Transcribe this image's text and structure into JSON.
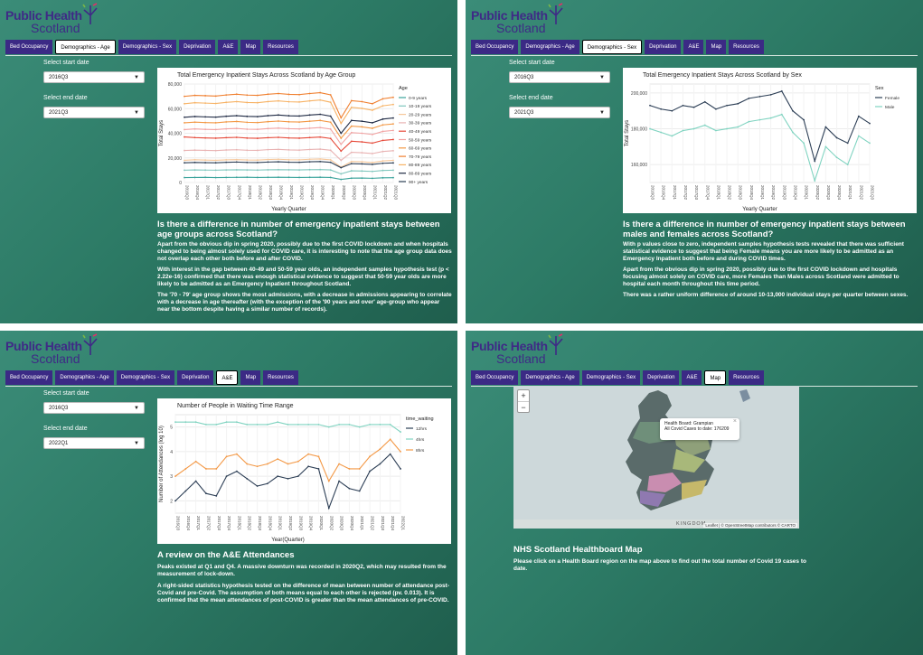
{
  "app": {
    "logo_line1": "Public Health",
    "logo_line2": "Scotland"
  },
  "tabs": [
    "Bed Occupancy",
    "Demographics - Age",
    "Demographics - Sex",
    "Deprivation",
    "A&E",
    "Map",
    "Resources"
  ],
  "labels": {
    "start": "Select start date",
    "end": "Select end date"
  },
  "colors": {
    "panel_bg": "#2d7b66",
    "tab_bg": "#3b2a85",
    "logo": "#3f2a86"
  },
  "age": {
    "start_value": "2016Q3",
    "end_value": "2021Q3",
    "heading": "Is there a difference in number of emergency inpatient stays between age groups across Scotland?",
    "p1": "Apart from the obvious dip in spring 2020, possibly due to the first COVID lockdown and when hospitals changed to being almost solely used for COVID care, it is interesting to note that the age group data does not overlap each other both before and after COVID.",
    "p2": "With interest in the gap between 40-49 and 50-59 year olds, an independent samples hypothesis test (p < 2.22e-16) confirmed that there was enough statistical evidence to suggest that 50-59 year olds are more likely to be admitted as an Emergency Inpatient throughout Scotland.",
    "p3": "The '70 - 79' age group shows the most admissions, with a decrease in admissions appearing to correlate with a decrease in age thereafter (with the exception of the '90 years and over' age-group who appear near the bottom despite having a similar number of records).",
    "chart_data": {
      "type": "line",
      "title": "Total Emergency Inpatient Stays Across Scotland by Age Group",
      "xlabel": "Yearly Quarter",
      "ylabel": "Total Stays",
      "legend_title": "Age",
      "legend": "right",
      "ylim": [
        0,
        80000
      ],
      "x": [
        "2016Q3",
        "2016Q4",
        "2017Q1",
        "2017Q2",
        "2017Q3",
        "2017Q4",
        "2018Q1",
        "2018Q2",
        "2018Q3",
        "2018Q4",
        "2019Q1",
        "2019Q2",
        "2019Q3",
        "2019Q4",
        "2020Q1",
        "2020Q2",
        "2020Q3",
        "2020Q4",
        "2021Q1",
        "2021Q2",
        "2021Q3"
      ],
      "yticks": [
        "0",
        "20,000",
        "40,000",
        "60,000",
        "80,000"
      ],
      "series": [
        {
          "name": "0-9 years",
          "color": "#3aa39b",
          "values": [
            4000,
            4100,
            4200,
            4000,
            4100,
            4200,
            4300,
            4100,
            4200,
            4300,
            4200,
            4100,
            4200,
            4300,
            4100,
            2500,
            3500,
            3600,
            3400,
            3800,
            3900
          ]
        },
        {
          "name": "10-19 years",
          "color": "#7fc6bd",
          "values": [
            10000,
            10200,
            10100,
            10000,
            10200,
            10300,
            10200,
            10100,
            10300,
            10400,
            10300,
            10200,
            10400,
            10500,
            10200,
            7000,
            9500,
            9300,
            9000,
            9800,
            10000
          ]
        },
        {
          "name": "20-29 years",
          "color": "#f6c79a",
          "values": [
            18000,
            18500,
            18200,
            18000,
            18400,
            18600,
            18300,
            18200,
            18700,
            18900,
            18500,
            18400,
            18900,
            19100,
            18400,
            12500,
            17000,
            16800,
            16200,
            17500,
            18000
          ]
        },
        {
          "name": "30-39 years",
          "color": "#e9b3b3",
          "values": [
            26000,
            26300,
            26100,
            25900,
            26400,
            26600,
            26200,
            26100,
            26700,
            26900,
            26500,
            26300,
            26800,
            27100,
            26200,
            18000,
            24500,
            24200,
            23500,
            25200,
            25800
          ]
        },
        {
          "name": "40-49 years",
          "color": "#e64a3a",
          "values": [
            37000,
            36500,
            36200,
            36000,
            36400,
            36700,
            36100,
            35900,
            36400,
            36700,
            36200,
            36000,
            36500,
            36900,
            35800,
            25500,
            33500,
            33000,
            32000,
            34200,
            34900
          ]
        },
        {
          "name": "50-59 years",
          "color": "#f2a3a3",
          "values": [
            43000,
            43500,
            43200,
            43000,
            43600,
            43900,
            43300,
            43200,
            43800,
            44200,
            43700,
            43500,
            44100,
            44600,
            43400,
            31000,
            40500,
            40000,
            39000,
            41500,
            42300
          ]
        },
        {
          "name": "60-69 years",
          "color": "#f39845",
          "values": [
            48500,
            49000,
            48700,
            48500,
            49200,
            49600,
            48900,
            48700,
            49400,
            49900,
            49300,
            49100,
            49800,
            50400,
            49000,
            36000,
            45800,
            45200,
            44000,
            46800,
            47600
          ]
        },
        {
          "name": "70-79 years",
          "color": "#f07f2f",
          "values": [
            70000,
            70800,
            70500,
            70200,
            71100,
            71700,
            71000,
            70800,
            71700,
            72300,
            71600,
            71400,
            72300,
            73000,
            71200,
            52500,
            66500,
            65700,
            64000,
            68000,
            69200
          ]
        },
        {
          "name": "80-89 years",
          "color": "#f7b366",
          "values": [
            64000,
            64800,
            64500,
            64200,
            65100,
            65700,
            65000,
            64800,
            65700,
            66300,
            65600,
            65400,
            66300,
            67000,
            65200,
            48000,
            61000,
            60200,
            58700,
            62300,
            63400
          ]
        },
        {
          "name": "80-89 years",
          "color": "#1f2a44",
          "values": [
            53000,
            53600,
            53300,
            53100,
            53800,
            54300,
            53700,
            53500,
            54300,
            54800,
            54200,
            54000,
            54800,
            55400,
            53900,
            40000,
            50400,
            49800,
            48500,
            51500,
            52400
          ]
        },
        {
          "name": "90+ years",
          "color": "#2c3e55",
          "values": [
            16000,
            16300,
            16100,
            16000,
            16400,
            16600,
            16300,
            16200,
            16600,
            16800,
            16500,
            16400,
            16800,
            17000,
            16400,
            12000,
            15300,
            15100,
            14700,
            15600,
            15900
          ]
        }
      ]
    }
  },
  "sex": {
    "start_value": "2016Q3",
    "end_value": "2021Q3",
    "heading": "Is there a difference in number of emergency inpatient stays between males and females across Scotland?",
    "p1": "With p values close to zero, independent samples hypothesis tests revealed that there was sufficient statistical evidence to suggest that being Female means you are more likely to be admitted as an Emergency Inpatient both before and during COVID times.",
    "p2": "Apart from the obvious dip in spring 2020, possibly due to the first COVID lockdown and hospitals focusing almost solely on COVID care, more Females than Males across Scotland were admitted to hospital each month throughout this time period.",
    "p3": "There was a rather uniform difference of around 10-13,000 individual stays per quarter between sexes.",
    "chart_data": {
      "type": "line",
      "title": "Total Emergency Inpatient Stays Across Scotland by Sex",
      "xlabel": "Yearly Quarter",
      "ylabel": "Total Stays",
      "legend_title": "Sex",
      "legend": "right",
      "ylim": [
        150000,
        205000
      ],
      "x": [
        "2016Q3",
        "2016Q4",
        "2017Q1",
        "2017Q2",
        "2017Q3",
        "2017Q4",
        "2018Q1",
        "2018Q2",
        "2018Q3",
        "2018Q4",
        "2019Q1",
        "2019Q2",
        "2019Q3",
        "2019Q4",
        "2020Q1",
        "2020Q2",
        "2020Q3",
        "2020Q4",
        "2021Q1",
        "2021Q2",
        "2021Q3"
      ],
      "yticks": [
        "160,000",
        "180,000",
        "200,000"
      ],
      "series": [
        {
          "name": "Female",
          "color": "#2c3e55",
          "values": [
            193000,
            191000,
            190000,
            193000,
            192000,
            195000,
            191000,
            193000,
            194000,
            197000,
            198000,
            199000,
            201000,
            190000,
            185000,
            162000,
            181000,
            175000,
            172000,
            187000,
            183000
          ]
        },
        {
          "name": "Male",
          "color": "#7fd3c0",
          "values": [
            180000,
            178000,
            176000,
            179000,
            180000,
            182000,
            179000,
            180000,
            181000,
            184000,
            185000,
            186000,
            188000,
            178000,
            172000,
            151000,
            170000,
            164000,
            160000,
            176000,
            172000
          ]
        }
      ]
    }
  },
  "ae": {
    "start_value": "2016Q3",
    "end_value": "2022Q1",
    "heading": "A review on the A&E Attendances",
    "p1": "Peaks existed at Q1 and Q4. A massive downturn was recorded in 2020Q2, which may resulted from the measurement of lock-down.",
    "p2": "A right-sided statistics hypothesis tested on the difference of mean between number of attendance post-Covid and pre-Covid. The assumption of both means equal to each other is rejected (pv. 0.013). It is confirmed that the mean attendances of post-COVID is greater than the mean attendances of pre-COVID.",
    "chart_data": {
      "type": "line",
      "title": "Number of People in Waiting Time Range",
      "xlabel": "Year(Quarter)",
      "ylabel": "Number of Attendances (log 10)",
      "legend_title": "time_waiting",
      "legend": "right",
      "ylim": [
        1.5,
        5.5
      ],
      "x": [
        "2016Q3",
        "2016Q4",
        "2017Q1",
        "2017Q2",
        "2017Q3",
        "2017Q4",
        "2018Q1",
        "2018Q2",
        "2018Q3",
        "2018Q4",
        "2019Q1",
        "2019Q2",
        "2019Q3",
        "2019Q4",
        "2020Q1",
        "2020Q2",
        "2020Q3",
        "2020Q4",
        "2021Q1",
        "2021Q2",
        "2021Q3",
        "2021Q4",
        "2022Q1"
      ],
      "yticks": [
        "2",
        "3",
        "4",
        "5"
      ],
      "series": [
        {
          "name": "12hrs",
          "color": "#2c3e55",
          "values": [
            2.0,
            2.4,
            2.8,
            2.3,
            2.2,
            3.0,
            3.2,
            2.9,
            2.6,
            2.7,
            3.0,
            2.9,
            3.0,
            3.4,
            3.3,
            1.7,
            2.8,
            2.5,
            2.4,
            3.2,
            3.5,
            3.9,
            3.3
          ]
        },
        {
          "name": "4hrs",
          "color": "#7fd3c0",
          "values": [
            5.2,
            5.2,
            5.2,
            5.1,
            5.1,
            5.2,
            5.2,
            5.1,
            5.1,
            5.1,
            5.2,
            5.1,
            5.1,
            5.1,
            5.1,
            5.0,
            5.1,
            5.1,
            5.0,
            5.1,
            5.1,
            5.1,
            4.8
          ]
        },
        {
          "name": "8hrs",
          "color": "#f39845",
          "values": [
            3.0,
            3.3,
            3.6,
            3.3,
            3.3,
            3.8,
            3.9,
            3.5,
            3.4,
            3.5,
            3.7,
            3.5,
            3.6,
            3.9,
            3.8,
            2.8,
            3.5,
            3.3,
            3.3,
            3.8,
            4.1,
            4.5,
            4.0
          ]
        }
      ]
    }
  },
  "map": {
    "zoom_in": "+",
    "zoom_out": "−",
    "popup_line1": "Health Board: Grampian",
    "popup_line2": "All Covid Cases to date: 176209",
    "popup_close": "×",
    "place_label": "KINGDOM",
    "attribution": "Leaflet | © OpenStreetMap contributors © CARTO",
    "heading": "NHS Scotland Healthboard Map",
    "p1": "Please click on a Health Board region on the map above to find out the total number of Covid 19 cases to date."
  }
}
